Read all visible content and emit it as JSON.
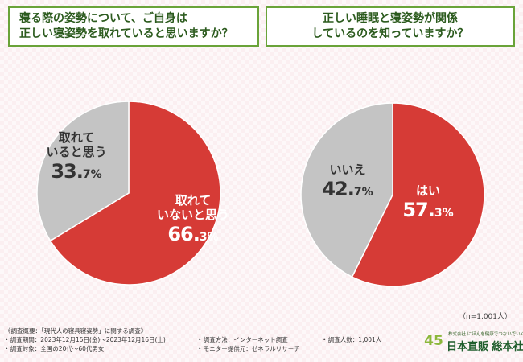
{
  "questions": {
    "left": [
      "寝る際の姿勢について、ご自身は",
      "正しい寝姿勢を取れていると思いますか？"
    ],
    "right": [
      "正しい睡眠と寝姿勢が関係",
      "しているのを知っていますか？"
    ]
  },
  "colors": {
    "red": "#d63b36",
    "grey": "#c4c4c4",
    "green_border": "#6aa339",
    "green_text": "#2c5b1e"
  },
  "chart_data": [
    {
      "type": "pie",
      "title": "寝る際の姿勢について、ご自身は正しい寝姿勢を取れていると思いますか？",
      "slices": [
        {
          "label": "取れていないと思う",
          "value": 66.3,
          "label_lines": [
            "取れて",
            "いないと思う"
          ],
          "pct_main": "66.",
          "pct_small": "3%",
          "color": "#d63b36"
        },
        {
          "label": "取れていると思う",
          "value": 33.7,
          "label_lines": [
            "取れて",
            "いると思う"
          ],
          "pct_main": "33.",
          "pct_small": "7%",
          "color": "#c4c4c4"
        }
      ]
    },
    {
      "type": "pie",
      "title": "正しい睡眠と寝姿勢が関係しているのを知っていますか？",
      "slices": [
        {
          "label": "はい",
          "value": 57.3,
          "label_lines": [
            "はい"
          ],
          "pct_main": "57.",
          "pct_small": "3%",
          "color": "#d63b36"
        },
        {
          "label": "いいえ",
          "value": 42.7,
          "label_lines": [
            "いいえ"
          ],
          "pct_main": "42.",
          "pct_small": "7%",
          "color": "#c4c4c4"
        }
      ]
    }
  ],
  "sample_note": "（n=1,001人）",
  "footer": {
    "row1": [
      "《調査概要：「現代人の寝具寝姿勢」に関する調査》"
    ],
    "row2": [
      "• 調査期間：2023年12月15日(金)～2023年12月16日(土)",
      "• 調査方法：インターネット調査",
      "• 調査人数：1,001人"
    ],
    "row3": [
      "• 調査対象：全国の20代～60代男女",
      "• モニター提供元：ゼネラルリサーチ"
    ]
  },
  "logo": {
    "mark": "45",
    "tagline": "株式会社 にほんを健康でつないでいく",
    "name": "日本直販 総本社"
  }
}
